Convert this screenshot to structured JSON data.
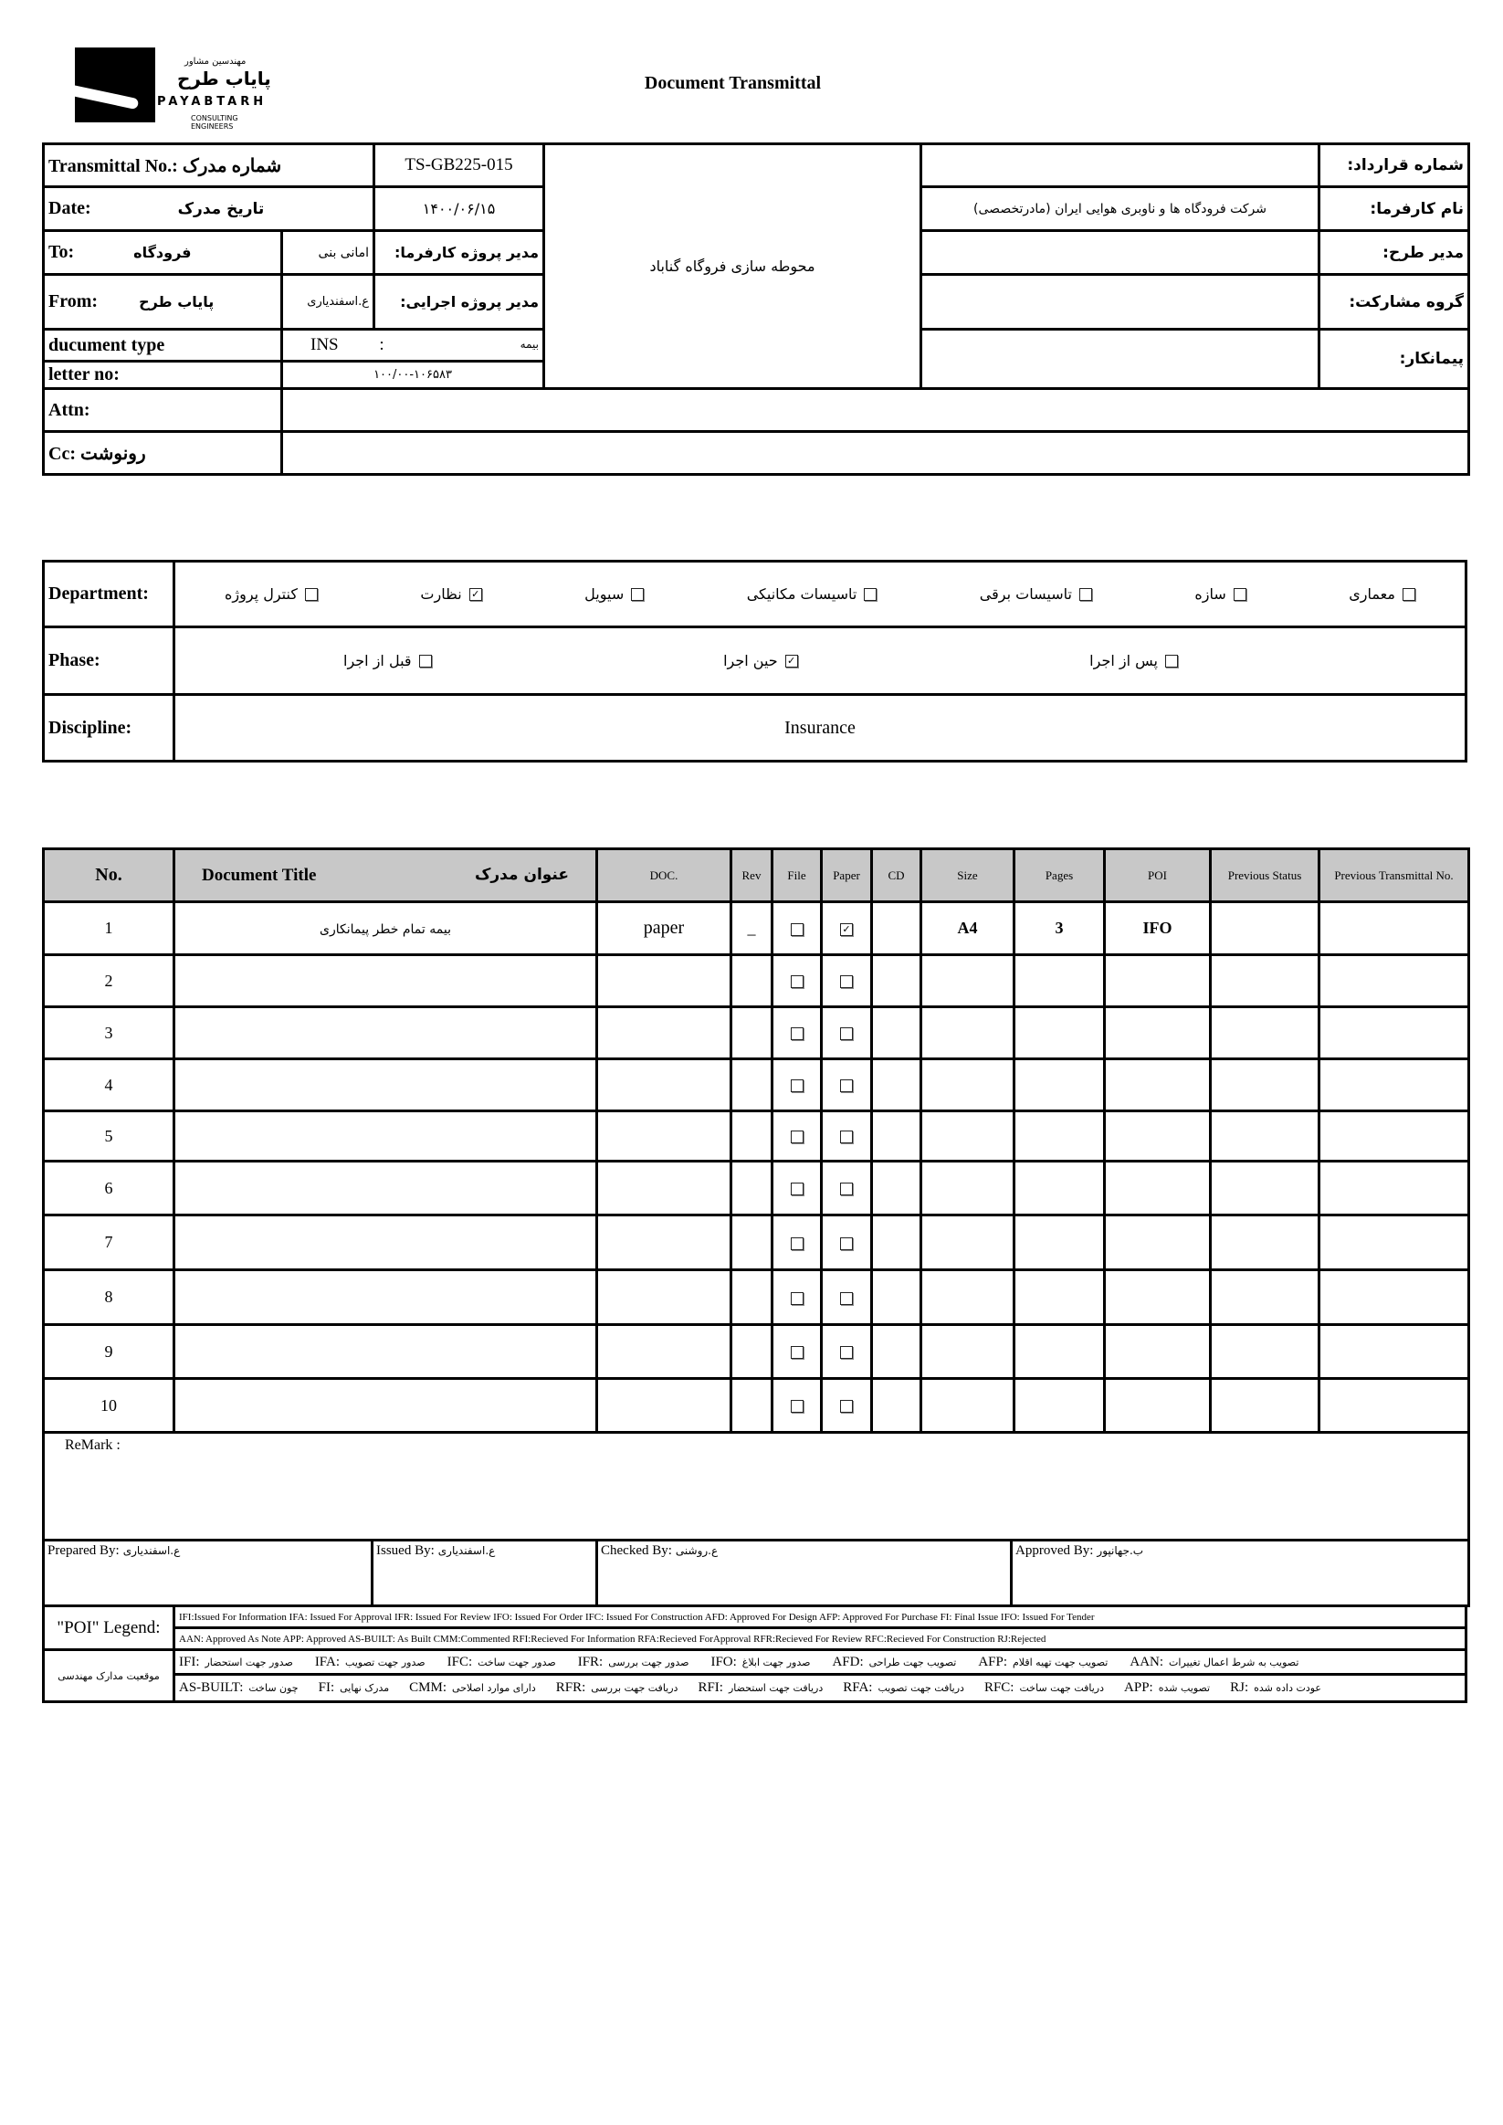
{
  "logo": {
    "fa_top": "مهندسین مشاور",
    "fa_name": "پایاب طرح",
    "en_name": "PAYABTARH",
    "en_sub": "CONSULTING ENGINEERS"
  },
  "title": "Document Transmittal",
  "info": {
    "transmittal_label": "Transmittal No.: شماره مدرک",
    "transmittal_value": "TS-GB225-015",
    "date_label": "Date:",
    "date_label_fa": "تاریخ  مدرک",
    "date_value": "۱۴۰۰/۰۶/۱۵",
    "to_label": "To:",
    "to_value": "فرودگاه",
    "to_person": "امانی بنی",
    "client_pm_label": "مدیر پروژه کارفرما:",
    "from_label": "From:",
    "from_value": "پایاب طرح",
    "from_person": "ع.اسفندیاری",
    "exec_pm_label": "مدیر پروژه اجرایی:",
    "doc_type_label": "ducument type",
    "doc_type_code": "INS",
    "doc_type_sep": ":",
    "doc_type_fa": "بیمه",
    "letter_label": "letter no:",
    "letter_value": "۱۰۰/۰۰-۱۰۶۵۸۳",
    "project": "محوطه سازی فروگاه گناباد",
    "contract_label": "شماره قرارداد:",
    "contract_value": "",
    "employer_label": "نام کارفرما:",
    "employer_value": "شرکت فرودگاه ها و ناوبری هوایی ایران (مادرتخصصی)",
    "plan_manager_label": "مدیر طرح:",
    "partner_label": "گروه مشارکت:",
    "contractor_label": "پیمانکار:",
    "attn_label": "Attn:",
    "cc_label": "Cc: رونوشت"
  },
  "department": {
    "label": "Department:",
    "options": [
      {
        "label": "معماری",
        "checked": false
      },
      {
        "label": "سازه",
        "checked": false
      },
      {
        "label": "تاسیسات برقی",
        "checked": false
      },
      {
        "label": "تاسیسات مکانیکی",
        "checked": false
      },
      {
        "label": "سیویل",
        "checked": false
      },
      {
        "label": "نظارت",
        "checked": true
      },
      {
        "label": "کنترل پروژه",
        "checked": false
      }
    ]
  },
  "phase": {
    "label": "Phase:",
    "options": [
      {
        "label": "پس از اجرا",
        "checked": false
      },
      {
        "label": "حین اجرا",
        "checked": true
      },
      {
        "label": "قبل از اجرا",
        "checked": false
      }
    ]
  },
  "discipline": {
    "label": "Discipline:",
    "value": "Insurance"
  },
  "docs": {
    "headers": {
      "no": "No.",
      "title_en": "Document Title",
      "title_fa": "عنوان مدرک",
      "doc": "DOC.",
      "rev": "Rev",
      "file": "File",
      "paper": "Paper",
      "cd": "CD",
      "size": "Size",
      "pages": "Pages",
      "poi": "POI",
      "prev_status": "Previous Status",
      "prev_transmittal": "Previous Transmittal No."
    },
    "rows": [
      {
        "no": "1",
        "title": "بیمه تمام خطر پیمانکاری",
        "doc": "paper",
        "rev": "_",
        "file": false,
        "paper": true,
        "cd": "",
        "size": "A4",
        "pages": "3",
        "poi": "IFO",
        "prev_status": "",
        "prev_transmittal": ""
      },
      {
        "no": "2",
        "file": false,
        "paper": false
      },
      {
        "no": "3",
        "file": false,
        "paper": false
      },
      {
        "no": "4",
        "file": false,
        "paper": false
      },
      {
        "no": "5",
        "file": false,
        "paper": false
      },
      {
        "no": "6",
        "file": false,
        "paper": false
      },
      {
        "no": "7",
        "file": false,
        "paper": false
      },
      {
        "no": "8",
        "file": false,
        "paper": false
      },
      {
        "no": "9",
        "file": false,
        "paper": false
      },
      {
        "no": "10",
        "file": false,
        "paper": false
      }
    ]
  },
  "remark_label": "ReMark :",
  "signatures": [
    {
      "label": "Prepared By:",
      "name": "ع.اسفندیاری"
    },
    {
      "label": "Issued By:",
      "name": "ع.اسفندیاری"
    },
    {
      "label": "Checked By:",
      "name": "ع.روشنی"
    },
    {
      "label": "Approved By:",
      "name": "ب.جهانپور"
    }
  ],
  "legend": {
    "label": "\"POI\" Legend:",
    "line1": "IFI:Issued For Information  IFA: Issued For Approval  IFR: Issued For Review   IFO: Issued For Order  IFC: Issued For Construction AFD: Approved For Design AFP: Approved For Purchase  FI: Final Issue  IFO: Issued For Tender",
    "line2": "AAN: Approved As Note  APP: Approved  AS-BUILT: As Built CMM:Commented  RFI:Recieved For Information   RFA:Recieved ForApproval   RFR:Recieved For Review  RFC:Recieved For Construction  RJ:Rejected",
    "fa_label": "موقعیت مدارک مهندسی",
    "fa_line1": [
      {
        "code": "IFI:",
        "text": "صدور جهت استحضار"
      },
      {
        "code": "IFA:",
        "text": "صدور جهت تصویب"
      },
      {
        "code": "IFC:",
        "text": "صدور جهت  ساخت"
      },
      {
        "code": "IFR:",
        "text": "صدور جهت بررسی"
      },
      {
        "code": "IFO:",
        "text": "صدور جهت ابلاغ"
      },
      {
        "code": "AFD:",
        "text": "تصویب جهت طراحی"
      },
      {
        "code": "AFP:",
        "text": "تصویب جهت تهیه اقلام"
      },
      {
        "code": "AAN:",
        "text": "تصویب به شرط اعمال تغییرات"
      }
    ],
    "fa_line2": [
      {
        "code": "AS-BUILT:",
        "text": "چون ساخت"
      },
      {
        "code": "FI:",
        "text": "مدرک نهایی"
      },
      {
        "code": "CMM:",
        "text": "دارای موارد اصلاحی"
      },
      {
        "code": "RFR:",
        "text": "دریافت جهت بررسی"
      },
      {
        "code": "RFI:",
        "text": "دریافت جهت استحضار"
      },
      {
        "code": "RFA:",
        "text": "دریافت جهت تصویب"
      },
      {
        "code": "RFC:",
        "text": "دریافت جهت ساخت"
      },
      {
        "code": "APP:",
        "text": "تصویب شده"
      },
      {
        "code": "RJ:",
        "text": "عودت داده شده"
      }
    ]
  }
}
